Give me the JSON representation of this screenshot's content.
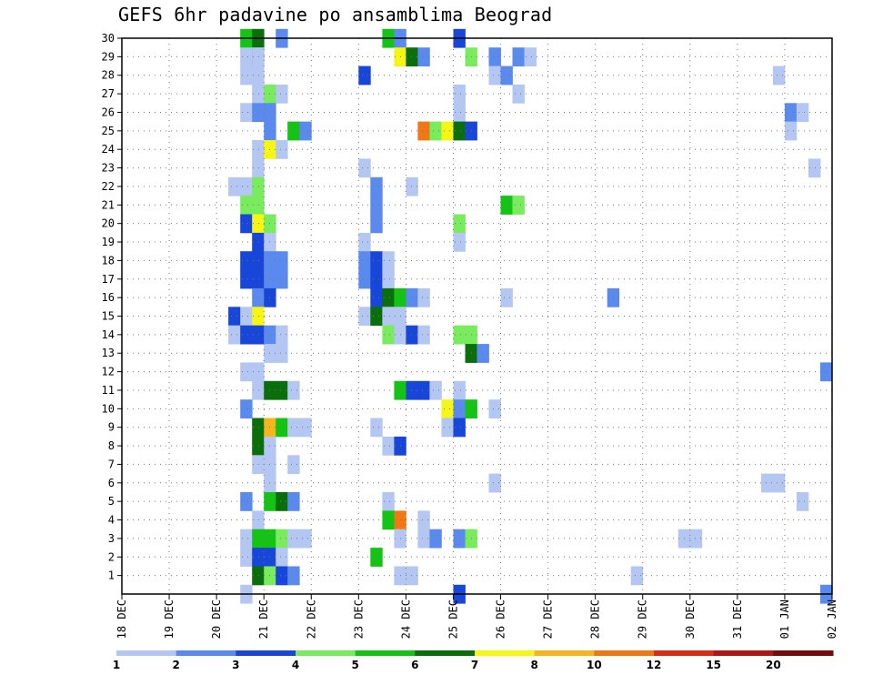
{
  "chart_data": {
    "type": "heatmap",
    "title": "GEFS 6hr padavine po ansamblima Beograd",
    "x_ticks": [
      "18 DEC",
      "19 DEC",
      "20 DEC",
      "21 DEC",
      "22 DEC",
      "23 DEC",
      "24 DEC",
      "25 DEC",
      "26 DEC",
      "27 DEC",
      "28 DEC",
      "29 DEC",
      "30 DEC",
      "31 DEC",
      "01 JAN",
      "02 JAN"
    ],
    "y_ticks": [
      1,
      2,
      3,
      4,
      5,
      6,
      7,
      8,
      9,
      10,
      11,
      12,
      13,
      14,
      15,
      16,
      17,
      18,
      19,
      20,
      21,
      22,
      23,
      24,
      25,
      26,
      27,
      28,
      29,
      30
    ],
    "xlim": [
      0,
      15
    ],
    "ylim": [
      0,
      30
    ],
    "grid": true,
    "colorbar": {
      "labels": [
        "1",
        "2",
        "3",
        "4",
        "5",
        "6",
        "7",
        "8",
        "10",
        "12",
        "15",
        "20"
      ],
      "colors": [
        "#b4c6f2",
        "#5a8aee",
        "#1846d8",
        "#78ec5c",
        "#14c414",
        "#0a6e0a",
        "#f6f614",
        "#f6b41e",
        "#f07814",
        "#dc2d14",
        "#b41414",
        "#780a0a"
      ]
    },
    "cell_width_days": 0.25,
    "cells": [
      [
        2.5,
        30,
        5
      ],
      [
        2.75,
        30,
        6
      ],
      [
        3.25,
        30,
        2
      ],
      [
        5.5,
        30,
        5
      ],
      [
        5.75,
        30,
        2
      ],
      [
        7.0,
        30,
        3
      ],
      [
        2.5,
        29,
        1
      ],
      [
        2.75,
        29,
        2
      ],
      [
        2.75,
        29,
        1
      ],
      [
        5.75,
        29,
        7
      ],
      [
        6.0,
        29,
        6
      ],
      [
        6.25,
        29,
        2
      ],
      [
        7.25,
        29,
        4
      ],
      [
        7.75,
        29,
        2
      ],
      [
        8.25,
        29,
        2
      ],
      [
        8.5,
        29,
        1
      ],
      [
        2.5,
        28,
        1
      ],
      [
        2.75,
        28,
        1
      ],
      [
        5.0,
        28,
        3
      ],
      [
        7.75,
        28,
        1
      ],
      [
        8.0,
        28,
        2
      ],
      [
        13.75,
        28,
        1
      ],
      [
        2.75,
        27,
        1
      ],
      [
        3.0,
        27,
        4
      ],
      [
        3.25,
        27,
        1
      ],
      [
        7.0,
        27,
        1
      ],
      [
        8.25,
        27,
        1
      ],
      [
        2.5,
        26,
        1
      ],
      [
        2.75,
        26,
        2
      ],
      [
        3.0,
        26,
        2
      ],
      [
        7.0,
        26,
        1
      ],
      [
        14.0,
        26,
        2
      ],
      [
        14.25,
        26,
        1
      ],
      [
        3.0,
        25,
        2
      ],
      [
        3.5,
        25,
        5
      ],
      [
        3.75,
        25,
        2
      ],
      [
        6.25,
        25,
        9
      ],
      [
        6.5,
        25,
        4
      ],
      [
        6.75,
        25,
        7
      ],
      [
        7.0,
        25,
        6
      ],
      [
        7.25,
        25,
        3
      ],
      [
        14.0,
        25,
        1
      ],
      [
        2.75,
        24,
        1
      ],
      [
        3.0,
        24,
        7
      ],
      [
        3.25,
        24,
        1
      ],
      [
        2.75,
        23,
        1
      ],
      [
        5.0,
        23,
        1
      ],
      [
        14.5,
        23,
        1
      ],
      [
        2.25,
        22,
        1
      ],
      [
        2.5,
        22,
        1
      ],
      [
        2.75,
        22,
        4
      ],
      [
        5.25,
        22,
        2
      ],
      [
        6.0,
        22,
        1
      ],
      [
        2.5,
        21,
        4
      ],
      [
        2.75,
        21,
        4
      ],
      [
        5.25,
        21,
        2
      ],
      [
        8.0,
        21,
        5
      ],
      [
        8.25,
        21,
        4
      ],
      [
        2.5,
        20,
        3
      ],
      [
        2.75,
        20,
        7
      ],
      [
        3.0,
        20,
        4
      ],
      [
        5.25,
        20,
        2
      ],
      [
        7.0,
        20,
        4
      ],
      [
        2.75,
        19,
        3
      ],
      [
        3.0,
        19,
        1
      ],
      [
        5.0,
        19,
        1
      ],
      [
        7.0,
        19,
        1
      ],
      [
        2.5,
        18,
        3
      ],
      [
        2.75,
        18,
        3
      ],
      [
        3.0,
        18,
        2
      ],
      [
        3.25,
        18,
        2
      ],
      [
        5.0,
        18,
        2
      ],
      [
        5.25,
        18,
        3
      ],
      [
        5.5,
        18,
        1
      ],
      [
        2.5,
        17,
        3
      ],
      [
        2.75,
        17,
        3
      ],
      [
        3.0,
        17,
        2
      ],
      [
        3.25,
        17,
        2
      ],
      [
        5.0,
        17,
        2
      ],
      [
        5.25,
        17,
        3
      ],
      [
        5.5,
        17,
        1
      ],
      [
        2.75,
        16,
        2
      ],
      [
        3.0,
        16,
        3
      ],
      [
        5.25,
        16,
        3
      ],
      [
        5.5,
        16,
        6
      ],
      [
        5.75,
        16,
        5
      ],
      [
        6.0,
        16,
        2
      ],
      [
        6.25,
        16,
        1
      ],
      [
        8.0,
        16,
        1
      ],
      [
        10.25,
        16,
        2
      ],
      [
        2.25,
        15,
        3
      ],
      [
        2.5,
        15,
        1
      ],
      [
        2.75,
        15,
        7
      ],
      [
        5.0,
        15,
        1
      ],
      [
        5.25,
        15,
        6
      ],
      [
        5.5,
        15,
        1
      ],
      [
        5.75,
        15,
        1
      ],
      [
        2.25,
        14,
        1
      ],
      [
        2.5,
        14,
        3
      ],
      [
        2.75,
        14,
        3
      ],
      [
        3.0,
        14,
        2
      ],
      [
        3.25,
        14,
        1
      ],
      [
        5.5,
        14,
        4
      ],
      [
        5.75,
        14,
        1
      ],
      [
        6.0,
        14,
        3
      ],
      [
        6.25,
        14,
        1
      ],
      [
        7.0,
        14,
        4
      ],
      [
        7.25,
        14,
        4
      ],
      [
        3.0,
        13,
        1
      ],
      [
        3.25,
        13,
        1
      ],
      [
        7.25,
        13,
        6
      ],
      [
        7.5,
        13,
        2
      ],
      [
        2.5,
        12,
        1
      ],
      [
        2.75,
        12,
        1
      ],
      [
        14.75,
        12,
        2
      ],
      [
        2.75,
        11,
        1
      ],
      [
        3.0,
        11,
        6
      ],
      [
        3.25,
        11,
        6
      ],
      [
        3.5,
        11,
        1
      ],
      [
        5.75,
        11,
        5
      ],
      [
        6.0,
        11,
        3
      ],
      [
        6.25,
        11,
        3
      ],
      [
        6.5,
        11,
        1
      ],
      [
        7.0,
        11,
        1
      ],
      [
        2.5,
        10,
        2
      ],
      [
        6.75,
        10,
        7
      ],
      [
        7.0,
        10,
        2
      ],
      [
        7.25,
        10,
        5
      ],
      [
        7.75,
        10,
        1
      ],
      [
        2.75,
        9,
        6
      ],
      [
        3.0,
        9,
        8
      ],
      [
        3.25,
        9,
        5
      ],
      [
        3.5,
        9,
        1
      ],
      [
        3.75,
        9,
        1
      ],
      [
        5.25,
        9,
        1
      ],
      [
        6.75,
        9,
        1
      ],
      [
        7.0,
        9,
        3
      ],
      [
        2.75,
        8,
        6
      ],
      [
        3.0,
        8,
        1
      ],
      [
        5.5,
        8,
        1
      ],
      [
        5.75,
        8,
        3
      ],
      [
        2.75,
        7,
        1
      ],
      [
        3.0,
        7,
        1
      ],
      [
        3.5,
        7,
        1
      ],
      [
        3.0,
        6,
        1
      ],
      [
        7.75,
        6,
        1
      ],
      [
        13.5,
        6,
        1
      ],
      [
        13.75,
        6,
        1
      ],
      [
        2.5,
        5,
        2
      ],
      [
        3.0,
        5,
        5
      ],
      [
        3.25,
        5,
        6
      ],
      [
        3.5,
        5,
        2
      ],
      [
        5.5,
        5,
        1
      ],
      [
        14.25,
        5,
        1
      ],
      [
        2.75,
        4,
        1
      ],
      [
        5.5,
        4,
        5
      ],
      [
        5.75,
        4,
        9
      ],
      [
        6.25,
        4,
        1
      ],
      [
        2.5,
        3,
        1
      ],
      [
        2.75,
        3,
        5
      ],
      [
        3.0,
        3,
        5
      ],
      [
        3.25,
        3,
        4
      ],
      [
        3.5,
        3,
        1
      ],
      [
        3.75,
        3,
        1
      ],
      [
        5.75,
        3,
        1
      ],
      [
        6.25,
        3,
        1
      ],
      [
        6.5,
        3,
        2
      ],
      [
        7.0,
        3,
        2
      ],
      [
        7.25,
        3,
        4
      ],
      [
        11.75,
        3,
        1
      ],
      [
        12.0,
        3,
        1
      ],
      [
        2.5,
        2,
        1
      ],
      [
        2.75,
        2,
        3
      ],
      [
        3.0,
        2,
        3
      ],
      [
        3.25,
        2,
        1
      ],
      [
        5.25,
        2,
        5
      ],
      [
        2.75,
        1,
        6
      ],
      [
        3.0,
        1,
        4
      ],
      [
        3.25,
        1,
        3
      ],
      [
        3.5,
        1,
        2
      ],
      [
        5.75,
        1,
        1
      ],
      [
        6.0,
        1,
        1
      ],
      [
        10.75,
        1,
        1
      ],
      [
        2.5,
        0,
        1
      ],
      [
        7.0,
        0,
        3
      ],
      [
        14.75,
        0,
        2
      ]
    ]
  }
}
